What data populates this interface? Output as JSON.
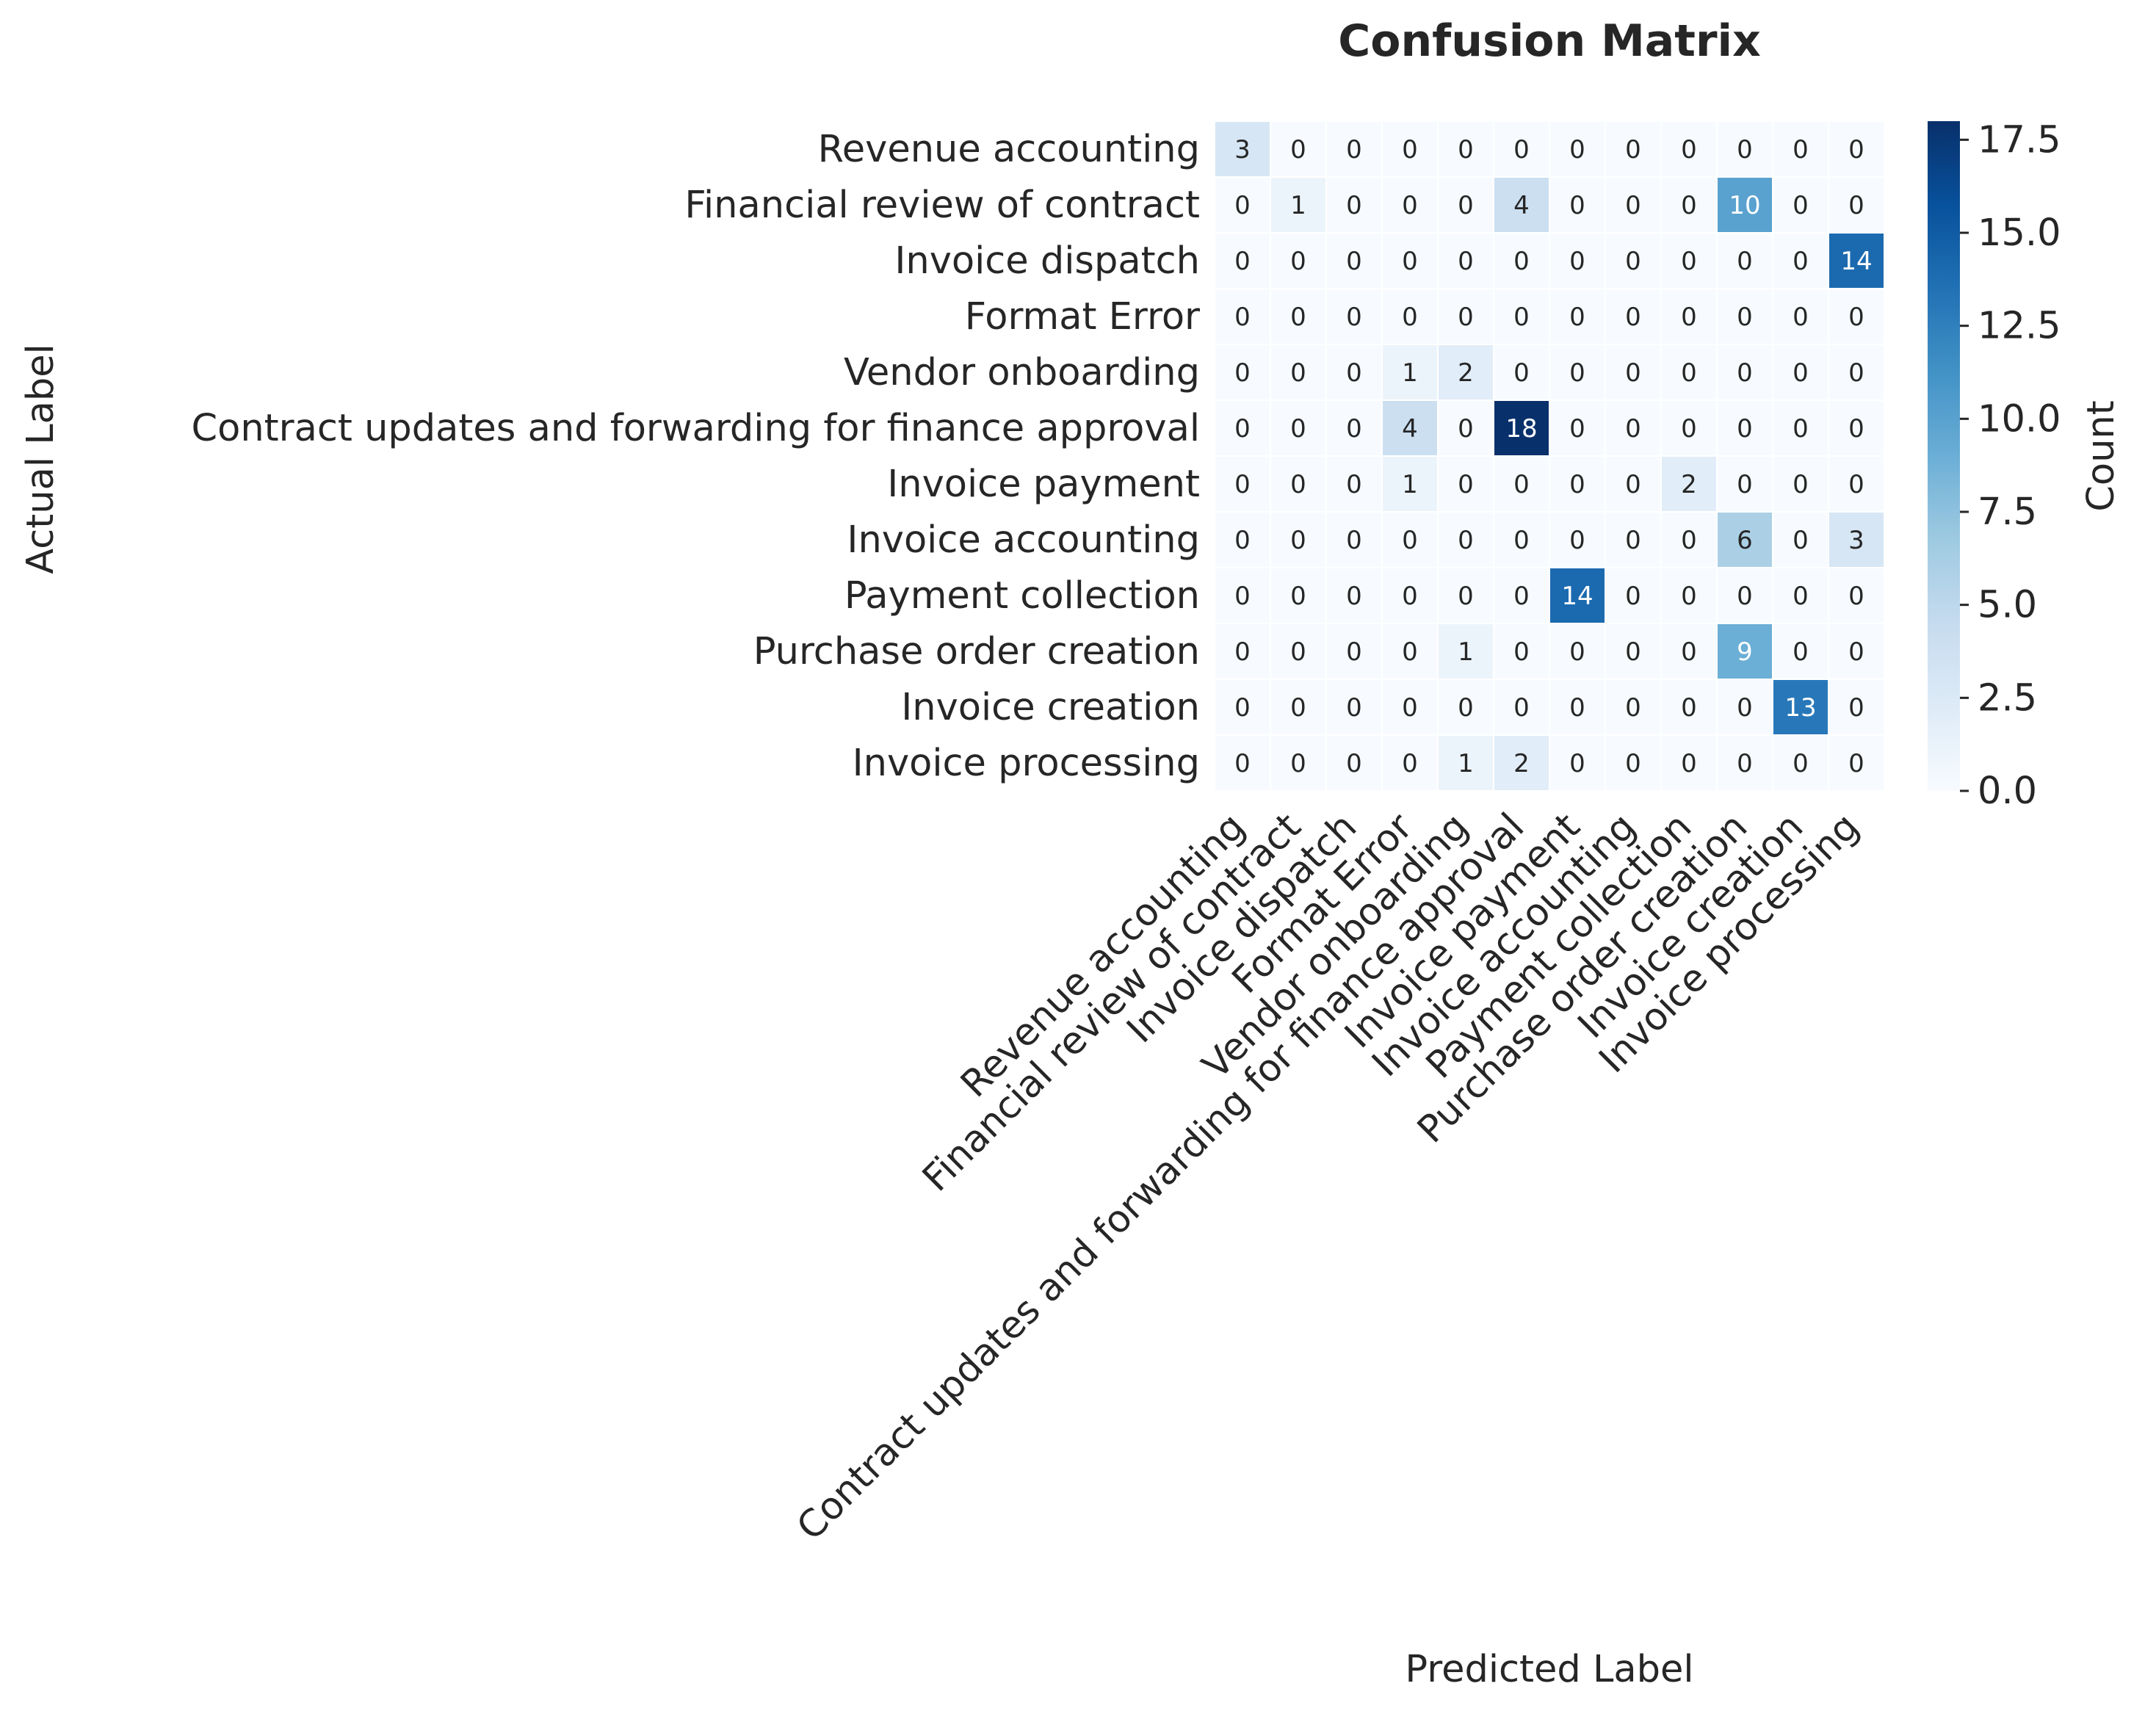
{
  "chart_data": {
    "type": "heatmap",
    "title": "Confusion Matrix",
    "xlabel": "Predicted Label",
    "ylabel": "Actual Label",
    "colorbar_label": "Count",
    "colormap": "Blues",
    "vmin": 0,
    "vmax": 18,
    "colorbar_ticks": [
      "0.0",
      "2.5",
      "5.0",
      "7.5",
      "10.0",
      "12.5",
      "15.0",
      "17.5"
    ],
    "colorbar_tick_values": [
      0,
      2.5,
      5,
      7.5,
      10,
      12.5,
      15,
      17.5
    ],
    "x_labels": [
      "Revenue accounting",
      "Financial review of contract",
      "Invoice dispatch",
      "Format Error",
      "Vendor onboarding",
      "Contract updates and forwarding for finance approval",
      "Invoice payment",
      "Invoice accounting",
      "Payment collection",
      "Purchase order creation",
      "Invoice creation",
      "Invoice processing"
    ],
    "y_labels": [
      "Revenue accounting",
      "Financial review of contract",
      "Invoice dispatch",
      "Format Error",
      "Vendor onboarding",
      "Contract updates and forwarding for finance approval",
      "Invoice payment",
      "Invoice accounting",
      "Payment collection",
      "Purchase order creation",
      "Invoice creation",
      "Invoice processing"
    ],
    "matrix": [
      [
        3,
        0,
        0,
        0,
        0,
        0,
        0,
        0,
        0,
        0,
        0,
        0
      ],
      [
        0,
        1,
        0,
        0,
        0,
        4,
        0,
        0,
        0,
        10,
        0,
        0
      ],
      [
        0,
        0,
        0,
        0,
        0,
        0,
        0,
        0,
        0,
        0,
        0,
        14
      ],
      [
        0,
        0,
        0,
        0,
        0,
        0,
        0,
        0,
        0,
        0,
        0,
        0
      ],
      [
        0,
        0,
        0,
        1,
        2,
        0,
        0,
        0,
        0,
        0,
        0,
        0
      ],
      [
        0,
        0,
        0,
        4,
        0,
        18,
        0,
        0,
        0,
        0,
        0,
        0
      ],
      [
        0,
        0,
        0,
        1,
        0,
        0,
        0,
        0,
        2,
        0,
        0,
        0
      ],
      [
        0,
        0,
        0,
        0,
        0,
        0,
        0,
        0,
        0,
        6,
        0,
        3
      ],
      [
        0,
        0,
        0,
        0,
        0,
        0,
        14,
        0,
        0,
        0,
        0,
        0
      ],
      [
        0,
        0,
        0,
        0,
        1,
        0,
        0,
        0,
        0,
        9,
        0,
        0
      ],
      [
        0,
        0,
        0,
        0,
        0,
        0,
        0,
        0,
        0,
        0,
        13,
        0
      ],
      [
        0,
        0,
        0,
        0,
        1,
        2,
        0,
        0,
        0,
        0,
        0,
        0
      ]
    ]
  }
}
